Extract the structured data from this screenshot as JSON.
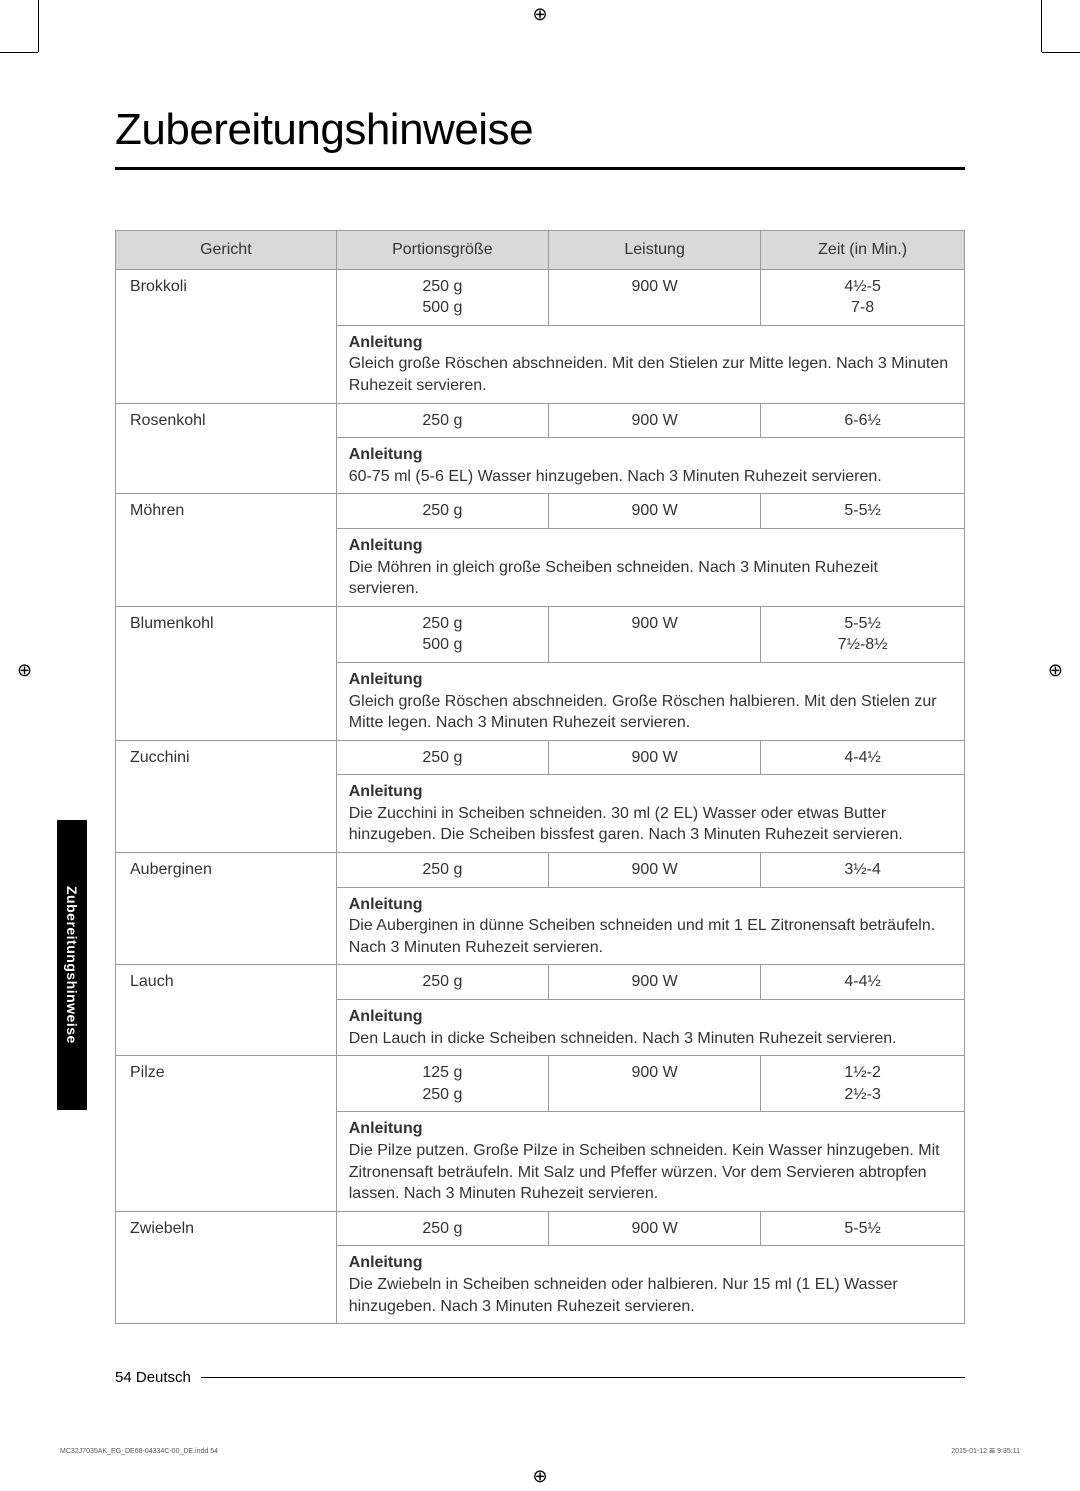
{
  "title": "Zubereitungshinweise",
  "tab_label": "Zubereitungshinweise",
  "headers": {
    "dish": "Gericht",
    "portion": "Portionsgröße",
    "power": "Leistung",
    "time": "Zeit (in Min.)"
  },
  "instr_label": "Anleitung",
  "rows": [
    {
      "dish": "Brokkoli",
      "portion": "250 g\n500 g",
      "power": "900 W",
      "time": "4½-5\n7-8",
      "instr": "Gleich große Röschen abschneiden. Mit den Stielen zur Mitte legen. Nach 3 Minuten Ruhezeit servieren."
    },
    {
      "dish": "Rosenkohl",
      "portion": "250 g",
      "power": "900 W",
      "time": "6-6½",
      "instr": "60-75 ml (5-6 EL) Wasser hinzugeben. Nach 3 Minuten Ruhezeit servieren."
    },
    {
      "dish": "Möhren",
      "portion": "250 g",
      "power": "900 W",
      "time": "5-5½",
      "instr": "Die Möhren in gleich große Scheiben schneiden. Nach 3 Minuten Ruhezeit servieren."
    },
    {
      "dish": "Blumenkohl",
      "portion": "250 g\n500 g",
      "power": "900 W",
      "time": "5-5½\n7½-8½",
      "instr": "Gleich große Röschen abschneiden. Große Röschen halbieren. Mit den Stielen zur Mitte legen. Nach 3 Minuten Ruhezeit servieren."
    },
    {
      "dish": "Zucchini",
      "portion": "250 g",
      "power": "900 W",
      "time": "4-4½",
      "instr": "Die Zucchini in Scheiben schneiden. 30 ml (2 EL) Wasser oder etwas Butter hinzugeben. Die Scheiben bissfest garen. Nach 3 Minuten Ruhezeit servieren."
    },
    {
      "dish": "Auberginen",
      "portion": "250 g",
      "power": "900 W",
      "time": "3½-4",
      "instr": "Die Auberginen in dünne Scheiben schneiden und mit 1 EL Zitronensaft beträufeln. Nach 3 Minuten Ruhezeit servieren."
    },
    {
      "dish": "Lauch",
      "portion": "250 g",
      "power": "900 W",
      "time": "4-4½",
      "instr": "Den Lauch in dicke Scheiben schneiden. Nach 3 Minuten Ruhezeit servieren."
    },
    {
      "dish": "Pilze",
      "portion": "125 g\n250 g",
      "power": "900 W",
      "time": "1½-2\n2½-3",
      "instr": "Die Pilze putzen. Große Pilze in Scheiben schneiden. Kein Wasser hinzugeben. Mit Zitronensaft beträufeln. Mit Salz und Pfeffer würzen. Vor dem Servieren abtropfen lassen. Nach 3 Minuten Ruhezeit servieren."
    },
    {
      "dish": "Zwiebeln",
      "portion": "250 g",
      "power": "900 W",
      "time": "5-5½",
      "instr": "Die Zwiebeln in Scheiben schneiden oder halbieren. Nur 15 ml (1 EL) Wasser hinzugeben. Nach 3 Minuten Ruhezeit servieren."
    }
  ],
  "footer": {
    "page_number": "54",
    "language": "Deutsch"
  },
  "print_marks": {
    "left": "MC32J7035AK_EG_DE68-04334C-00_DE.indd   54",
    "right": "2015-01-12   𝌆 9:35:11"
  },
  "colors": {
    "header_bg": "#d9d9d9",
    "border": "#999999",
    "text": "#333333",
    "tab_bg": "#000000",
    "tab_text": "#ffffff"
  },
  "typography": {
    "title_fontsize": 44,
    "body_fontsize": 16,
    "tab_fontsize": 14,
    "footer_fontsize": 15
  }
}
